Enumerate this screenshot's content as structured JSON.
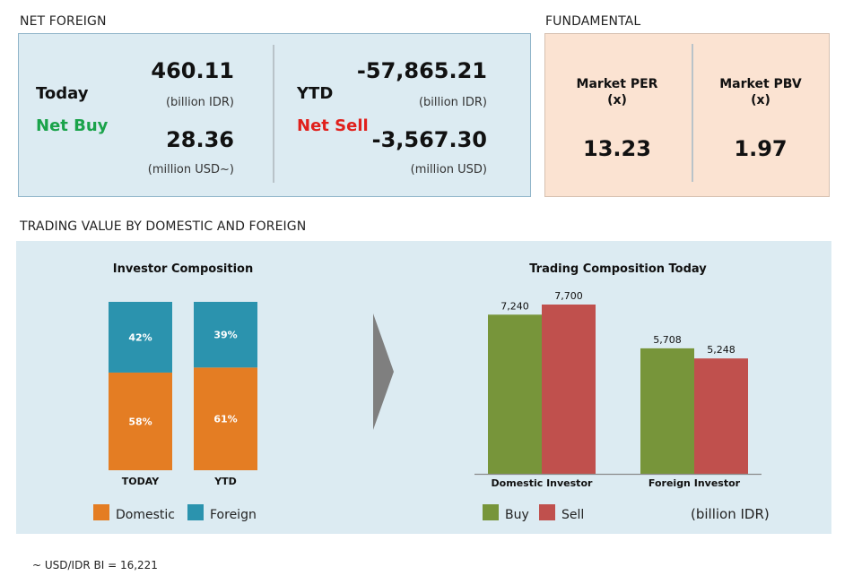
{
  "net_foreign": {
    "title": "NET FOREIGN",
    "today": {
      "label": "Today",
      "status": "Net Buy",
      "value_idr": "460.11",
      "unit_idr": "(billion IDR)",
      "value_usd": "28.36",
      "unit_usd": "(million USD~)"
    },
    "ytd": {
      "label": "YTD",
      "status": "Net Sell",
      "value_idr": "-57,865.21",
      "unit_idr": "(billion IDR)",
      "value_usd": "-3,567.30",
      "unit_usd": "(million USD)"
    },
    "colors": {
      "buy": "#1aa34a",
      "sell": "#e0201c"
    }
  },
  "fundamental": {
    "title": "FUNDAMENTAL",
    "per": {
      "label": "Market PER",
      "unit": "(x)",
      "value": "13.23"
    },
    "pbv": {
      "label": "Market PBV",
      "unit": "(x)",
      "value": "1.97"
    }
  },
  "trading": {
    "title": "TRADING VALUE BY DOMESTIC AND FOREIGN",
    "unit_note": "(billion IDR)",
    "footnote": "~ USD/IDR BI = 16,221"
  },
  "chart_data": [
    {
      "type": "bar",
      "stacked": true,
      "percent": true,
      "title": "Investor Composition",
      "categories": [
        "TODAY",
        "YTD"
      ],
      "series": [
        {
          "name": "Domestic",
          "values": [
            58,
            61
          ],
          "color": "#e47d23"
        },
        {
          "name": "Foreign",
          "values": [
            42,
            39
          ],
          "color": "#2b93ae"
        }
      ],
      "ylim": [
        0,
        100
      ],
      "legend": "bottom",
      "grid": false
    },
    {
      "type": "bar",
      "title": "Trading Composition Today",
      "categories": [
        "Domestic Investor",
        "Foreign Investor"
      ],
      "series": [
        {
          "name": "Buy",
          "values": [
            7240,
            5708
          ],
          "labels": [
            "7,240",
            "5,708"
          ],
          "color": "#77953a"
        },
        {
          "name": "Sell",
          "values": [
            7700,
            5248
          ],
          "labels": [
            "7,700",
            "5,248"
          ],
          "color": "#c0504d"
        }
      ],
      "ylim": [
        0,
        8500
      ],
      "legend": "bottom",
      "grid": false
    }
  ],
  "arrow_color": "#7f7f7f"
}
